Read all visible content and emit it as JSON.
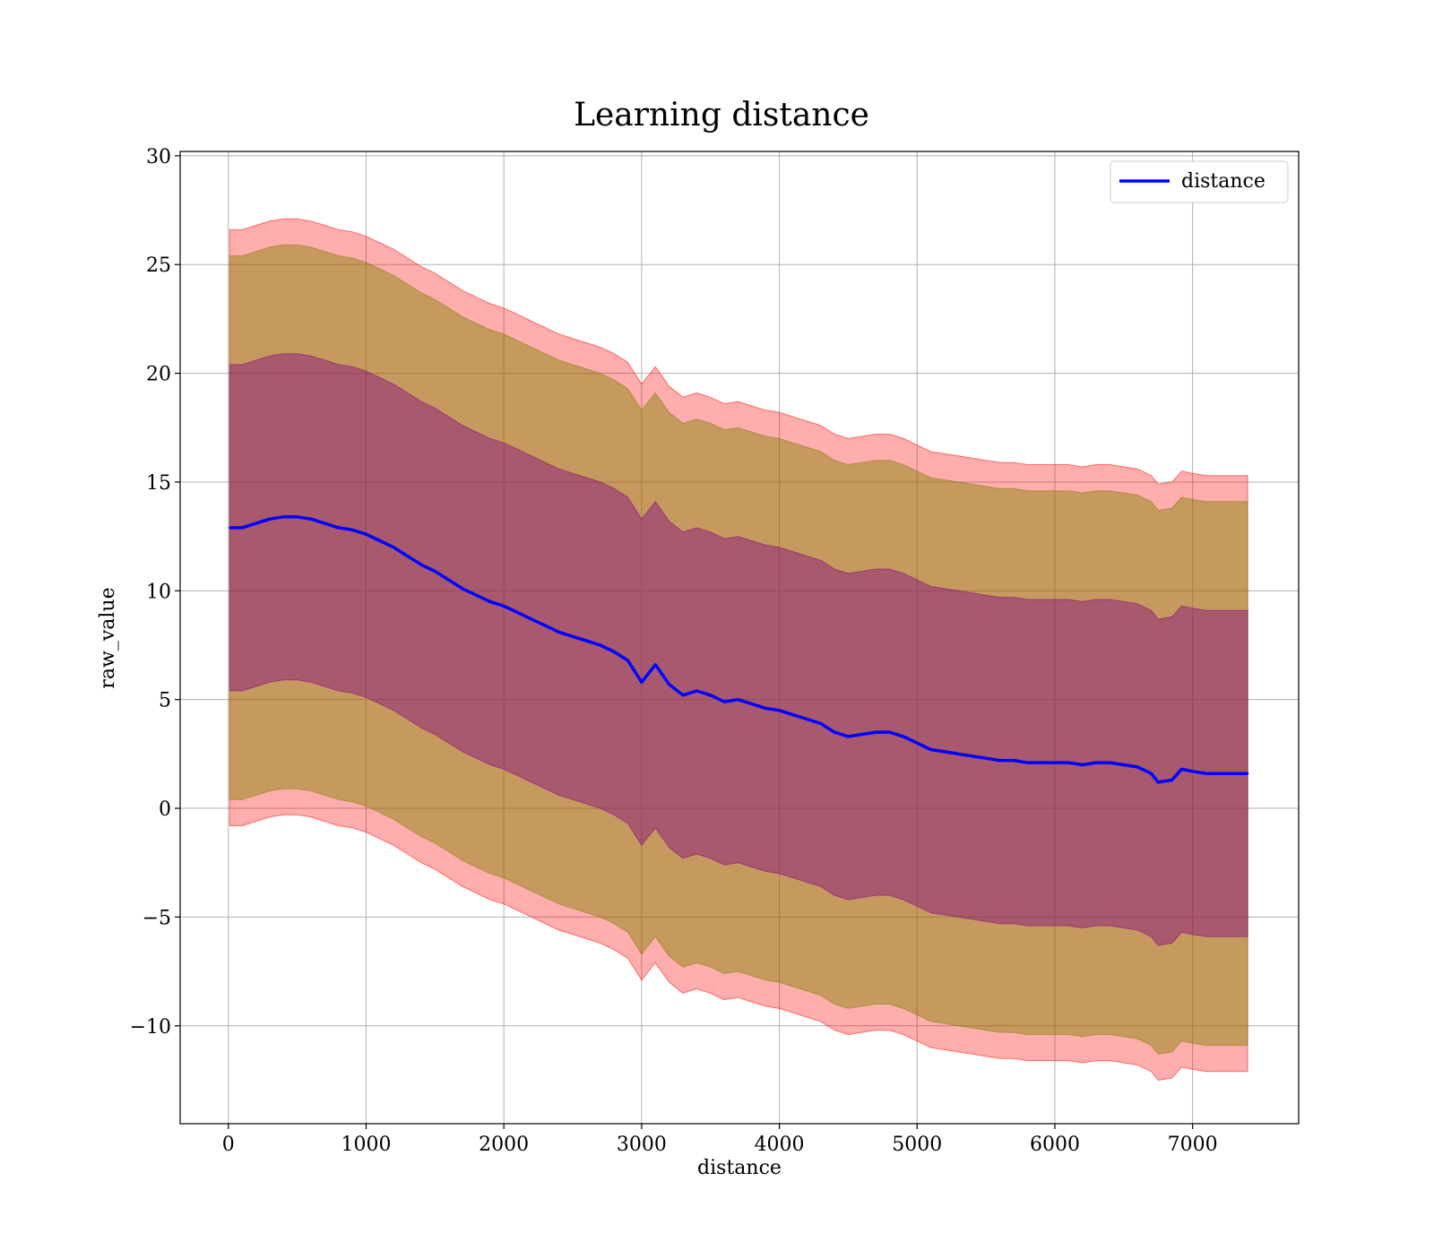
{
  "colors": {
    "line": "#0000ff",
    "band_outer": "#ff0000",
    "band_mid": "#808000",
    "band_inner": "#800080",
    "grid": "#b0b0b0",
    "axes": "#000000"
  },
  "chart_data": {
    "type": "line",
    "title": "Learning distance",
    "xlabel": "distance",
    "ylabel": "raw_value",
    "xlim": [
      -350,
      7770
    ],
    "ylim": [
      -14.5,
      30.2
    ],
    "xticks": [
      0,
      1000,
      2000,
      3000,
      4000,
      5000,
      6000,
      7000
    ],
    "xtick_labels": [
      "0",
      "1000",
      "2000",
      "3000",
      "4000",
      "5000",
      "6000",
      "7000"
    ],
    "yticks": [
      -10,
      -5,
      0,
      5,
      10,
      15,
      20,
      25,
      30
    ],
    "ytick_labels": [
      "−10",
      "−5",
      "0",
      "5",
      "10",
      "15",
      "20",
      "25",
      "30"
    ],
    "grid": true,
    "legend": {
      "position": "top-right",
      "entries": [
        "distance"
      ]
    },
    "series": [
      {
        "name": "distance",
        "x": [
          10,
          100,
          200,
          300,
          400,
          500,
          600,
          700,
          800,
          900,
          1000,
          1100,
          1200,
          1300,
          1400,
          1500,
          1600,
          1700,
          1800,
          1900,
          2000,
          2100,
          2200,
          2300,
          2400,
          2500,
          2600,
          2700,
          2800,
          2900,
          3000,
          3100,
          3200,
          3300,
          3400,
          3500,
          3600,
          3700,
          3800,
          3900,
          4000,
          4100,
          4200,
          4300,
          4400,
          4500,
          4600,
          4700,
          4800,
          4900,
          5000,
          5100,
          5200,
          5300,
          5400,
          5500,
          5600,
          5700,
          5800,
          5900,
          6000,
          6100,
          6200,
          6300,
          6400,
          6500,
          6600,
          6700,
          6750,
          6850,
          6920,
          7000,
          7100,
          7200,
          7300,
          7400
        ],
        "y": [
          12.9,
          12.9,
          13.1,
          13.3,
          13.4,
          13.4,
          13.3,
          13.1,
          12.9,
          12.8,
          12.6,
          12.3,
          12.0,
          11.6,
          11.2,
          10.9,
          10.5,
          10.1,
          9.8,
          9.5,
          9.3,
          9.0,
          8.7,
          8.4,
          8.1,
          7.9,
          7.7,
          7.5,
          7.2,
          6.8,
          5.8,
          6.6,
          5.7,
          5.2,
          5.4,
          5.2,
          4.9,
          5.0,
          4.8,
          4.6,
          4.5,
          4.3,
          4.1,
          3.9,
          3.5,
          3.3,
          3.4,
          3.5,
          3.5,
          3.3,
          3.0,
          2.7,
          2.6,
          2.5,
          2.4,
          2.3,
          2.2,
          2.2,
          2.1,
          2.1,
          2.1,
          2.1,
          2.0,
          2.1,
          2.1,
          2.0,
          1.9,
          1.6,
          1.2,
          1.3,
          1.8,
          1.7,
          1.6,
          1.6,
          1.6,
          1.6
        ]
      }
    ],
    "bands": [
      {
        "offset": 13.7
      },
      {
        "offset": 12.5
      },
      {
        "offset": 7.5
      }
    ]
  }
}
